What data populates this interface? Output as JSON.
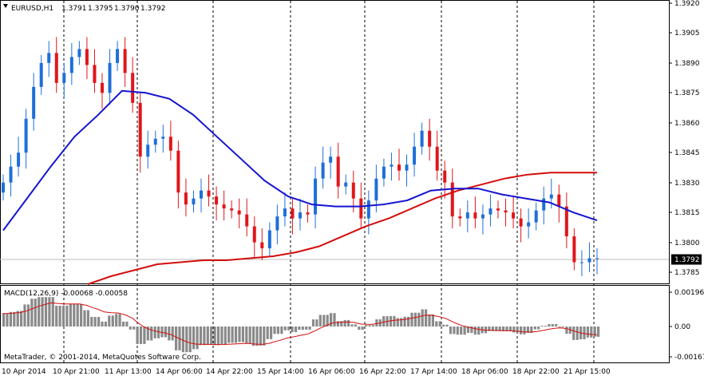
{
  "header": {
    "symbol": "EURUSD,H1",
    "open": "1.3791",
    "high": "1.3795",
    "low": "1.3790",
    "close": "1.3792"
  },
  "price_scale": {
    "ticks": [
      "1.3920",
      "1.3905",
      "1.3890",
      "1.3875",
      "1.3860",
      "1.3845",
      "1.3830",
      "1.3815",
      "1.3800",
      "1.3785"
    ],
    "current_price": "1.3792"
  },
  "macd": {
    "label": "MACD(12,26,9) -0.00068 -0.00058",
    "ticks": [
      "0.00196",
      "0.00",
      "-0.00167"
    ]
  },
  "time_axis": {
    "labels": [
      "10 Apr 2014",
      "10 Apr 21:00",
      "11 Apr 13:00",
      "14 Apr 06:00",
      "14 Apr 22:00",
      "15 Apr 14:00",
      "16 Apr 06:00",
      "16 Apr 22:00",
      "17 Apr 14:00",
      "18 Apr 06:00",
      "18 Apr 22:00",
      "21 Apr 15:00"
    ]
  },
  "copyright": "MetaTrader, © 2001-2014, MetaQuotes Software Corp.",
  "colors": {
    "bull": "#1e6fd9",
    "bear": "#e0161b",
    "ma_fast": "#1414d2",
    "ma_slow": "#d40d0d",
    "histogram": "#8a8a8a",
    "signal": "#d40d0d"
  },
  "chart_data": {
    "type": "line",
    "ylim": [
      1.378,
      1.3922
    ],
    "candles_close": [
      1.383,
      1.3838,
      1.3845,
      1.3862,
      1.3878,
      1.389,
      1.3895,
      1.388,
      1.3885,
      1.3893,
      1.3897,
      1.3889,
      1.388,
      1.3875,
      1.389,
      1.3897,
      1.3885,
      1.387,
      1.3843,
      1.3849,
      1.3852,
      1.3853,
      1.3846,
      1.3825,
      1.3819,
      1.3822,
      1.3826,
      1.3823,
      1.3819,
      1.3817,
      1.3816,
      1.3814,
      1.3808,
      1.38,
      1.3797,
      1.3806,
      1.3813,
      1.3817,
      1.3812,
      1.3815,
      1.3814,
      1.3832,
      1.384,
      1.3843,
      1.3828,
      1.383,
      1.3822,
      1.3812,
      1.3821,
      1.3832,
      1.3838,
      1.3839,
      1.3836,
      1.3839,
      1.3848,
      1.3856,
      1.3848,
      1.3836,
      1.383,
      1.3813,
      1.3812,
      1.3815,
      1.3812,
      1.3814,
      1.3817,
      1.3816,
      1.3815,
      1.3812,
      1.3808,
      1.381,
      1.3816,
      1.3822,
      1.3824,
      1.3818,
      1.3803,
      1.379,
      1.379,
      1.3792,
      1.3792
    ],
    "ma_fast": [
      1.3806,
      1.3822,
      1.3838,
      1.3853,
      1.3864,
      1.3876,
      1.3875,
      1.3872,
      1.3864,
      1.3853,
      1.3842,
      1.3831,
      1.3823,
      1.3819,
      1.3818,
      1.3818,
      1.3819,
      1.3821,
      1.3826,
      1.3827,
      1.3827,
      1.3824,
      1.3822,
      1.382,
      1.3815,
      1.3811
    ],
    "ma_slow": [
      1.3779,
      1.3783,
      1.3786,
      1.3789,
      1.379,
      1.3791,
      1.3791,
      1.3792,
      1.3793,
      1.3795,
      1.3798,
      1.3803,
      1.3808,
      1.3812,
      1.3817,
      1.3822,
      1.3826,
      1.3829,
      1.3832,
      1.3834,
      1.3835,
      1.3835,
      1.3835
    ],
    "macd_ylim": [
      -0.00196,
      0.00196
    ]
  }
}
